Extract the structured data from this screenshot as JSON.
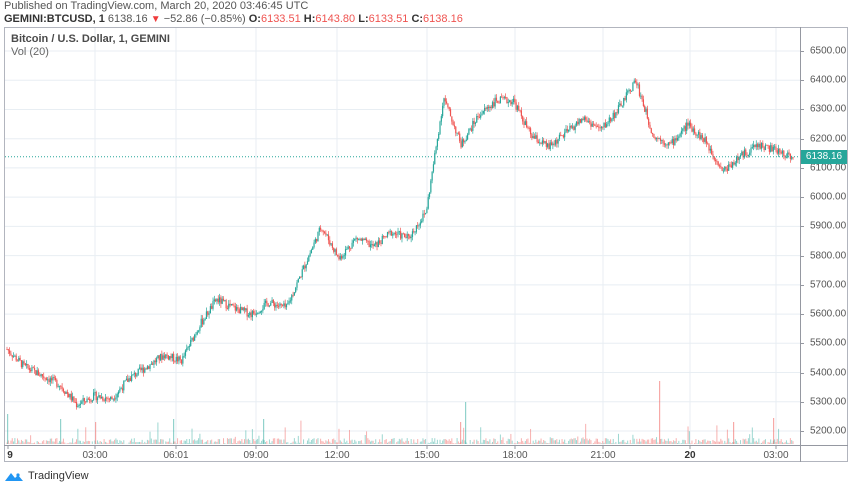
{
  "header": {
    "published": "Published on TradingView.com, March 20, 2020 03:46:45 UTC",
    "symbol": "GEMINI:BTCUSD, 1",
    "last": "6138.16",
    "change_arrow": "▼",
    "change": "−52.86 (−0.85%)",
    "o_label": "O:",
    "o": "6133.51",
    "h_label": "H:",
    "h": "6143.80",
    "l_label": "L:",
    "l": "6133.51",
    "c_label": "C:",
    "c": "6138.16"
  },
  "pane": {
    "title": "Bitcoin / U.S. Dollar, 1, GEMINI",
    "volume_indicator": "Vol (20)"
  },
  "last_price_label": "6138.16",
  "brand": {
    "name": "TradingView",
    "icon": "tradingview-cloud-icon"
  },
  "colors": {
    "up": "#26a69a",
    "down": "#ef5350",
    "grid": "#e8eef3",
    "last_price_line": "#26a69a"
  },
  "chart_data": {
    "type": "candlestick",
    "title": "Bitcoin / U.S. Dollar, 1, GEMINI",
    "symbol": "GEMINI:BTCUSD",
    "interval": "1 minute",
    "xlabel": "",
    "ylabel": "",
    "ylim": [
      5150,
      6560
    ],
    "y_ticks": [
      "6500.00",
      "6400.00",
      "6300.00",
      "6200.00",
      "6100.00",
      "6000.00",
      "5900.00",
      "5800.00",
      "5700.00",
      "5600.00",
      "5500.00",
      "5400.00",
      "5300.00",
      "5200.00"
    ],
    "x_ticks": [
      "9",
      "03:00",
      "06:01",
      "09:00",
      "12:00",
      "15:00",
      "18:00",
      "21:00",
      "20",
      "03:00"
    ],
    "grid": true,
    "last_price": 6138.16,
    "ohlc_last": {
      "open": 6133.51,
      "high": 6143.8,
      "low": 6133.51,
      "close": 6138.16
    },
    "price_path": {
      "x": [
        "00:00",
        "00:30",
        "01:00",
        "02:00",
        "03:00",
        "04:00",
        "05:00",
        "06:00",
        "07:00",
        "08:00",
        "09:00",
        "09:30",
        "10:00",
        "10:30",
        "11:00",
        "11:30",
        "12:00",
        "12:30",
        "13:00",
        "13:30",
        "14:00",
        "14:30",
        "15:00",
        "15:30",
        "16:00",
        "16:15",
        "16:30",
        "17:00",
        "17:30",
        "18:00",
        "18:30",
        "19:00",
        "20:00",
        "21:00",
        "22:00",
        "22:30",
        "23:00",
        "23:30",
        "00:00",
        "00:30",
        "01:00",
        "01:30",
        "02:00",
        "02:30",
        "03:00",
        "03:45"
      ],
      "close": [
        5480,
        5420,
        5390,
        5360,
        5290,
        5320,
        5310,
        5380,
        5420,
        5460,
        5440,
        5560,
        5650,
        5620,
        5600,
        5640,
        5620,
        5760,
        5900,
        5790,
        5860,
        5830,
        5880,
        5860,
        5950,
        6340,
        6180,
        6280,
        6330,
        6330,
        6210,
        6170,
        6220,
        6270,
        6230,
        6300,
        6400,
        6210,
        6180,
        6250,
        6190,
        6090,
        6140,
        6180,
        6160,
        6138
      ]
    },
    "volume": {
      "note": "Volume bars along bottom; notable spikes",
      "spikes": [
        {
          "time": "16:00",
          "approx": "tallest green cluster"
        },
        {
          "time": "23:15",
          "approx": "tallest red spike"
        },
        {
          "time": "02:15",
          "approx": "red spike"
        }
      ]
    }
  }
}
